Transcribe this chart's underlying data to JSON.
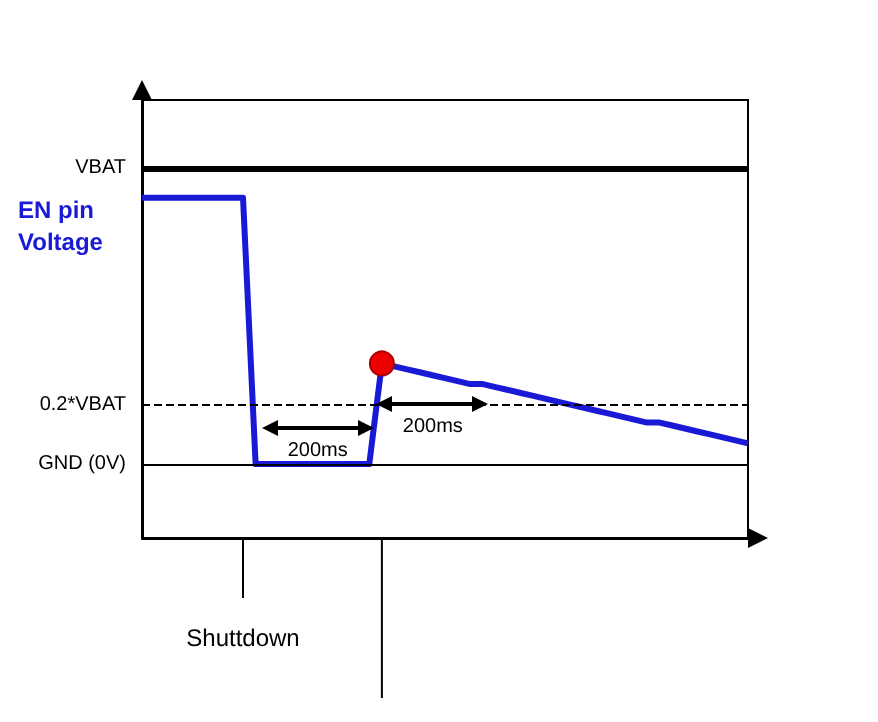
{
  "chart_data": {
    "type": "line",
    "categories": [
      null,
      null,
      null,
      null,
      null,
      null,
      null,
      null,
      null,
      null,
      null,
      null,
      null,
      null,
      null,
      null,
      null,
      null,
      null,
      null,
      null,
      null,
      null,
      null,
      null,
      null,
      null,
      null,
      null,
      null,
      null,
      null,
      null,
      null,
      null,
      null,
      null,
      null,
      null,
      null,
      null,
      null,
      null,
      null,
      null,
      null,
      null,
      null,
      null
    ],
    "series": [
      {
        "name": "EN pin Voltage",
        "color": "#1a1ad6",
        "values": [
          0.9,
          0.9,
          0.9,
          0.9,
          0.9,
          0.9,
          0.9,
          0.9,
          0.9,
          0,
          0,
          0,
          0,
          0,
          0,
          0,
          0,
          0,
          0,
          0.34,
          0.33,
          0.32,
          0.31,
          0.3,
          0.29,
          0.28,
          0.27,
          0.27,
          0.26,
          0.25,
          0.24,
          0.23,
          0.22,
          0.21,
          0.2,
          0.19,
          0.18,
          0.17,
          0.16,
          0.15,
          0.14,
          0.14,
          0.13,
          0.12,
          0.11,
          0.1,
          0.09,
          0.08,
          0.07
        ],
        "colors": [
          null,
          null,
          null,
          null,
          null,
          null,
          null,
          null,
          null,
          null,
          null,
          null,
          null,
          null,
          null,
          null,
          null,
          null,
          null,
          "#ee0000",
          null,
          null,
          null,
          null,
          null,
          null,
          null,
          null,
          null,
          null,
          null,
          null,
          null,
          null,
          null,
          null,
          null,
          null,
          null,
          null,
          null,
          null,
          null,
          null,
          null,
          null,
          null,
          null,
          null
        ]
      }
    ],
    "ylim": [
      -0.25,
      1.23
    ],
    "yticks": [
      {
        "value": 1,
        "label": "VBAT"
      },
      {
        "value": 0.2,
        "label": "0.2*VBAT"
      },
      {
        "value": 0,
        "label": "GND (0V)"
      }
    ],
    "tick_labels": "y",
    "grid": false,
    "legend": false,
    "marker": "none",
    "line_style": "solid",
    "ref_lines": [
      {
        "axis": "y",
        "value": 1,
        "color": "#000000"
      },
      {
        "axis": "y",
        "value": 0.2,
        "color": "#000000",
        "line_style": "dashed"
      },
      {
        "axis": "y",
        "value": 0,
        "color": "#000000"
      }
    ],
    "annotations": [
      "200ms",
      "200ms",
      "Shuttdown"
    ]
  }
}
